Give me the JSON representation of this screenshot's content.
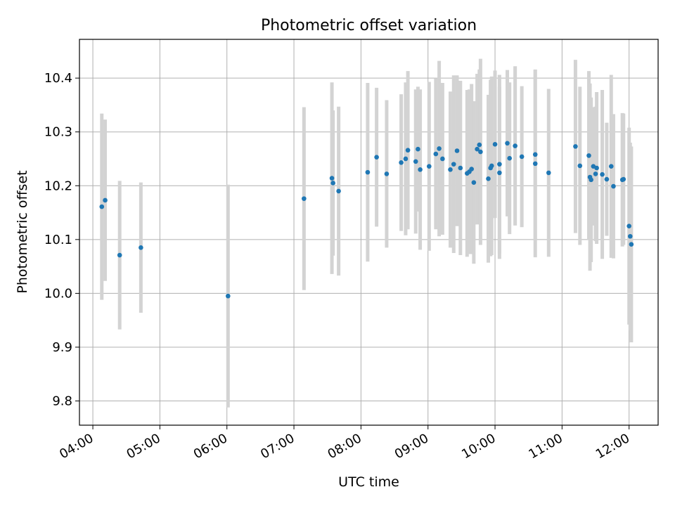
{
  "chart_data": {
    "type": "scatter",
    "title": "Photometric offset variation",
    "xlabel": "UTC time",
    "ylabel": "Photometric offset",
    "grid": true,
    "x_format": "HH:MM",
    "xlim": [
      "03:48",
      "12:26"
    ],
    "ylim": [
      9.755,
      10.472
    ],
    "x_ticks": [
      "04:00",
      "05:00",
      "06:00",
      "07:00",
      "08:00",
      "09:00",
      "10:00",
      "11:00",
      "12:00"
    ],
    "y_ticks": [
      "9.8",
      "9.9",
      "10.0",
      "10.1",
      "10.2",
      "10.3",
      "10.4"
    ],
    "colors": {
      "marker": "#1f77b4",
      "errorbar": "#d3d3d3",
      "grid": "#b0b0b0"
    },
    "series": [
      {
        "x": [
          "04:08",
          "04:11",
          "04:24",
          "04:43",
          "06:01",
          "07:09",
          "07:34",
          "07:35",
          "07:40",
          "08:06",
          "08:14",
          "08:23",
          "08:36",
          "08:40",
          "08:42",
          "08:49",
          "08:51",
          "08:53",
          "09:01",
          "09:07",
          "09:10",
          "09:13",
          "09:20",
          "09:23",
          "09:26",
          "09:29",
          "09:35",
          "09:37",
          "09:39",
          "09:41",
          "09:44",
          "09:46",
          "09:47",
          "09:54",
          "09:56",
          "09:57",
          "10:00",
          "10:04",
          "10:04",
          "10:11",
          "10:13",
          "10:18",
          "10:24",
          "10:36",
          "10:36",
          "10:48",
          "11:12",
          "11:16",
          "11:24",
          "11:25",
          "11:26",
          "11:28",
          "11:30",
          "11:31",
          "11:36",
          "11:40",
          "11:44",
          "11:46",
          "11:54",
          "11:55",
          "12:00",
          "12:01",
          "12:02"
        ],
        "y": [
          10.161,
          10.173,
          10.071,
          10.085,
          9.995,
          10.176,
          10.214,
          10.205,
          10.19,
          10.225,
          10.253,
          10.222,
          10.243,
          10.25,
          10.266,
          10.245,
          10.268,
          10.23,
          10.236,
          10.259,
          10.269,
          10.25,
          10.23,
          10.24,
          10.265,
          10.233,
          10.223,
          10.226,
          10.231,
          10.206,
          10.268,
          10.276,
          10.263,
          10.213,
          10.233,
          10.237,
          10.277,
          10.224,
          10.24,
          10.279,
          10.251,
          10.274,
          10.254,
          10.241,
          10.258,
          10.224,
          10.273,
          10.237,
          10.256,
          10.216,
          10.211,
          10.236,
          10.222,
          10.233,
          10.221,
          10.212,
          10.236,
          10.199,
          10.211,
          10.212,
          10.125,
          10.106,
          10.091
        ],
        "yerr": [
          0.173,
          0.15,
          0.138,
          0.121,
          0.207,
          0.17,
          0.178,
          0.135,
          0.157,
          0.166,
          0.129,
          0.137,
          0.127,
          0.142,
          0.147,
          0.134,
          0.116,
          0.149,
          0.157,
          0.14,
          0.163,
          0.141,
          0.145,
          0.165,
          0.14,
          0.162,
          0.155,
          0.153,
          0.158,
          0.151,
          0.14,
          0.14,
          0.173,
          0.156,
          0.164,
          0.166,
          0.137,
          0.16,
          0.166,
          0.136,
          0.141,
          0.148,
          0.131,
          0.174,
          0.158,
          0.156,
          0.161,
          0.147,
          0.157,
          0.174,
          0.153,
          0.11,
          0.125,
          0.141,
          0.157,
          0.105,
          0.17,
          0.134,
          0.124,
          0.122,
          0.183,
          0.174,
          0.182
        ]
      }
    ]
  }
}
